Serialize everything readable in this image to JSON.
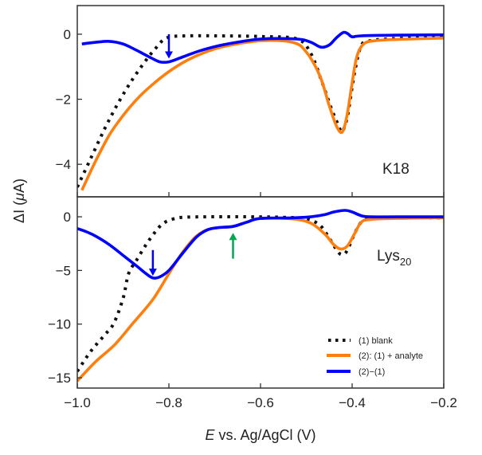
{
  "chart_data": [
    {
      "type": "line",
      "panel_label": "K18",
      "xlim": [
        -1.0,
        -0.2
      ],
      "ylim": [
        -5.0,
        0.88
      ],
      "xticks": [
        "-1.0",
        "-0.8",
        "-0.6",
        "-0.4",
        "-0.2"
      ],
      "yticks": [
        0,
        -2,
        -4
      ],
      "ytick_labels": [
        "0",
        "−2",
        "−4"
      ],
      "grid": false,
      "series": [
        {
          "name": "(1) blank",
          "color": "#111111",
          "style": "dotted",
          "x": [
            -1.0,
            -0.97,
            -0.94,
            -0.91,
            -0.88,
            -0.85,
            -0.83,
            -0.81,
            -0.79,
            -0.76,
            -0.7,
            -0.6,
            -0.52,
            -0.49,
            -0.465,
            -0.445,
            -0.43,
            -0.422,
            -0.41,
            -0.395,
            -0.38,
            -0.36,
            -0.3,
            -0.2
          ],
          "y": [
            -4.7,
            -3.8,
            -2.9,
            -2.1,
            -1.4,
            -0.8,
            -0.45,
            -0.15,
            -0.07,
            -0.05,
            -0.05,
            -0.07,
            -0.15,
            -0.6,
            -1.5,
            -2.3,
            -2.8,
            -3.0,
            -2.5,
            -1.2,
            -0.35,
            -0.2,
            -0.13,
            -0.1
          ]
        },
        {
          "name": "(2): (1) + analyte",
          "color": "#ff7f0e",
          "style": "solid",
          "x": [
            -0.99,
            -0.96,
            -0.93,
            -0.9,
            -0.87,
            -0.84,
            -0.8,
            -0.76,
            -0.72,
            -0.68,
            -0.6,
            -0.53,
            -0.5,
            -0.47,
            -0.45,
            -0.435,
            -0.425,
            -0.418,
            -0.41,
            -0.4,
            -0.39,
            -0.375,
            -0.35,
            -0.3,
            -0.2
          ],
          "y": [
            -4.8,
            -3.9,
            -3.1,
            -2.5,
            -2.0,
            -1.6,
            -1.15,
            -0.8,
            -0.55,
            -0.38,
            -0.2,
            -0.25,
            -0.55,
            -1.3,
            -2.2,
            -2.8,
            -3.02,
            -2.9,
            -2.4,
            -1.5,
            -0.7,
            -0.3,
            -0.2,
            -0.16,
            -0.12
          ]
        },
        {
          "name": "(2)−(1)",
          "color": "#0000ff",
          "style": "solid",
          "x": [
            -0.99,
            -0.96,
            -0.93,
            -0.9,
            -0.87,
            -0.84,
            -0.82,
            -0.8,
            -0.77,
            -0.73,
            -0.68,
            -0.6,
            -0.52,
            -0.49,
            -0.468,
            -0.45,
            -0.435,
            -0.42,
            -0.41,
            -0.4,
            -0.38,
            -0.3,
            -0.2
          ],
          "y": [
            -0.3,
            -0.25,
            -0.22,
            -0.3,
            -0.5,
            -0.72,
            -0.85,
            -0.85,
            -0.7,
            -0.5,
            -0.32,
            -0.15,
            -0.15,
            -0.25,
            -0.4,
            -0.33,
            -0.12,
            0.05,
            0.02,
            -0.08,
            -0.05,
            -0.03,
            -0.02
          ]
        }
      ],
      "annotations": [
        {
          "type": "arrow",
          "direction": "down",
          "color": "#0000ff",
          "x": -0.8,
          "y_from": 0.0,
          "y_to": -0.75
        }
      ]
    },
    {
      "type": "line",
      "panel_label": "Lys",
      "panel_label_sub": "20",
      "xlim": [
        -1.0,
        -0.2
      ],
      "ylim": [
        -15.96,
        1.86
      ],
      "xticks": [
        "-1.0",
        "-0.8",
        "-0.6",
        "-0.4",
        "-0.2"
      ],
      "xtick_labels": [
        "−1.0",
        "−0.8",
        "−0.6",
        "−0.4",
        "−0.2"
      ],
      "yticks": [
        0,
        -5,
        -10,
        -15
      ],
      "ytick_labels": [
        "0",
        "−5",
        "−10",
        "−15"
      ],
      "xlabel_italic": "E",
      "xlabel": " vs. Ag/AgCl (V)",
      "ylabel": "ΔI (",
      "ylabel_unit_italic": "μ",
      "ylabel_end": "A)",
      "grid": false,
      "legend_position": "bottom-right",
      "series": [
        {
          "name": "(1) blank",
          "color": "#111111",
          "style": "dotted",
          "x": [
            -1.0,
            -0.97,
            -0.94,
            -0.92,
            -0.9,
            -0.888,
            -0.87,
            -0.85,
            -0.835,
            -0.82,
            -0.806,
            -0.79,
            -0.77,
            -0.72,
            -0.62,
            -0.55,
            -0.5,
            -0.47,
            -0.45,
            -0.435,
            -0.425,
            -0.415,
            -0.405,
            -0.395,
            -0.38,
            -0.36,
            -0.3,
            -0.2
          ],
          "y": [
            -14.4,
            -12.5,
            -11.0,
            -9.9,
            -7.6,
            -5.3,
            -4.0,
            -2.6,
            -1.7,
            -0.9,
            -0.45,
            -0.2,
            -0.05,
            0.0,
            0.0,
            -0.05,
            -0.2,
            -0.8,
            -2.0,
            -3.0,
            -3.5,
            -3.4,
            -2.6,
            -1.6,
            -0.5,
            -0.2,
            -0.1,
            -0.1
          ]
        },
        {
          "name": "(2): (1) + analyte",
          "color": "#ff7f0e",
          "style": "solid",
          "x": [
            -1.0,
            -0.96,
            -0.919,
            -0.88,
            -0.835,
            -0.8,
            -0.77,
            -0.74,
            -0.715,
            -0.69,
            -0.66,
            -0.63,
            -0.6,
            -0.53,
            -0.49,
            -0.46,
            -0.44,
            -0.425,
            -0.41,
            -0.395,
            -0.38,
            -0.36,
            -0.3,
            -0.2
          ],
          "y": [
            -15.3,
            -13.5,
            -11.95,
            -10.0,
            -7.7,
            -5.3,
            -3.3,
            -1.8,
            -1.2,
            -1.0,
            -0.9,
            -0.5,
            -0.15,
            -0.2,
            -0.6,
            -1.6,
            -2.6,
            -3.0,
            -2.7,
            -1.6,
            -0.5,
            -0.25,
            -0.15,
            -0.1
          ]
        },
        {
          "name": "(2)−(1)",
          "color": "#0000ff",
          "style": "solid",
          "x": [
            -1.0,
            -0.98,
            -0.96,
            -0.93,
            -0.9,
            -0.87,
            -0.85,
            -0.835,
            -0.82,
            -0.8,
            -0.77,
            -0.74,
            -0.715,
            -0.69,
            -0.66,
            -0.63,
            -0.6,
            -0.53,
            -0.49,
            -0.46,
            -0.44,
            -0.415,
            -0.4,
            -0.38,
            -0.36,
            -0.3,
            -0.2
          ],
          "y": [
            -1.1,
            -1.4,
            -1.8,
            -2.6,
            -3.6,
            -4.6,
            -5.3,
            -5.7,
            -5.6,
            -5.0,
            -3.4,
            -1.9,
            -1.2,
            -1.0,
            -0.9,
            -0.5,
            -0.15,
            -0.1,
            0.0,
            0.2,
            0.45,
            0.6,
            0.45,
            0.1,
            0.0,
            0.0,
            0.0
          ]
        }
      ],
      "annotations": [
        {
          "type": "arrow",
          "direction": "down",
          "color": "#0000ff",
          "x": -0.835,
          "y_from": -3.1,
          "y_to": -5.5
        },
        {
          "type": "arrow",
          "direction": "up",
          "color": "#00a651",
          "x": -0.66,
          "y_from": -3.9,
          "y_to": -1.5
        }
      ]
    }
  ]
}
